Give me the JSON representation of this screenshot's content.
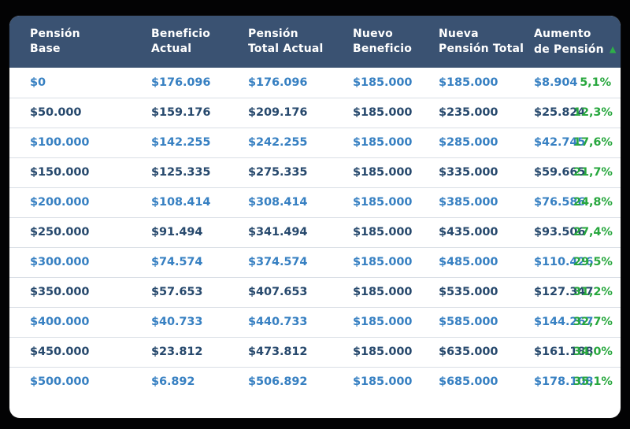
{
  "colors": {
    "page_background": "#030304",
    "card_background": "#ffffff",
    "header_background": "#3a5272",
    "header_text": "#ffffff",
    "row_blue_text": "#3780c2",
    "row_navy_text": "#27496d",
    "percent_green": "#28a73e",
    "sort_arrow_green": "#2eae49",
    "row_divider": "#d9dee5"
  },
  "table": {
    "cell_names": [
      "cell-pension-base",
      "cell-beneficio-actual",
      "cell-pension-total-actual",
      "cell-nuevo-beneficio",
      "cell-nueva-pension-total",
      "cell-aumento-pension",
      "cell-aumento-porcentaje"
    ],
    "header": [
      {
        "line1": "Pensión",
        "line2": "Base"
      },
      {
        "line1": "Beneficio",
        "line2": "Actual"
      },
      {
        "line1": "Pensión",
        "line2": "Total Actual"
      },
      {
        "line1": "Nuevo",
        "line2": "Beneficio"
      },
      {
        "line1": "Nueva",
        "line2": "Pensión Total"
      },
      {
        "line1": "Aumento",
        "line2": "de Pensión",
        "sort_icon": "▲"
      }
    ],
    "rows": [
      {
        "cells": [
          "$0",
          "$176.096",
          "$176.096",
          "$185.000",
          "$185.000",
          "$8.904",
          "5,1%"
        ]
      },
      {
        "cells": [
          "$50.000",
          "$159.176",
          "$209.176",
          "$185.000",
          "$235.000",
          "$25.824",
          "12,3%"
        ]
      },
      {
        "cells": [
          "$100.000",
          "$142.255",
          "$242.255",
          "$185.000",
          "$285.000",
          "$42.745",
          "17,6%"
        ]
      },
      {
        "cells": [
          "$150.000",
          "$125.335",
          "$275.335",
          "$185.000",
          "$335.000",
          "$59.665",
          "21,7%"
        ]
      },
      {
        "cells": [
          "$200.000",
          "$108.414",
          "$308.414",
          "$185.000",
          "$385.000",
          "$76.586",
          "24,8%"
        ]
      },
      {
        "cells": [
          "$250.000",
          "$91.494",
          "$341.494",
          "$185.000",
          "$435.000",
          "$93.506",
          "27,4%"
        ]
      },
      {
        "cells": [
          "$300.000",
          "$74.574",
          "$374.574",
          "$185.000",
          "$485.000",
          "$110.426",
          "29,5%"
        ]
      },
      {
        "cells": [
          "$350.000",
          "$57.653",
          "$407.653",
          "$185.000",
          "$535.000",
          "$127.347",
          "31,2%"
        ]
      },
      {
        "cells": [
          "$400.000",
          "$40.733",
          "$440.733",
          "$185.000",
          "$585.000",
          "$144.267",
          "32,7%"
        ]
      },
      {
        "cells": [
          "$450.000",
          "$23.812",
          "$473.812",
          "$185.000",
          "$635.000",
          "$161.188",
          "34,0%"
        ]
      },
      {
        "cells": [
          "$500.000",
          "$6.892",
          "$506.892",
          "$185.000",
          "$685.000",
          "$178.108",
          "35,1%"
        ]
      }
    ]
  },
  "chart_data": {
    "type": "table",
    "title": "",
    "columns": [
      "Pensión Base",
      "Beneficio Actual",
      "Pensión Total Actual",
      "Nuevo Beneficio",
      "Nueva Pensión Total",
      "Aumento de Pensión",
      "Aumento de Pensión %"
    ],
    "rows": [
      [
        "$0",
        "$176.096",
        "$176.096",
        "$185.000",
        "$185.000",
        "$8.904",
        "5,1%"
      ],
      [
        "$50.000",
        "$159.176",
        "$209.176",
        "$185.000",
        "$235.000",
        "$25.824",
        "12,3%"
      ],
      [
        "$100.000",
        "$142.255",
        "$242.255",
        "$185.000",
        "$285.000",
        "$42.745",
        "17,6%"
      ],
      [
        "$150.000",
        "$125.335",
        "$275.335",
        "$185.000",
        "$335.000",
        "$59.665",
        "21,7%"
      ],
      [
        "$200.000",
        "$108.414",
        "$308.414",
        "$185.000",
        "$385.000",
        "$76.586",
        "24,8%"
      ],
      [
        "$250.000",
        "$91.494",
        "$341.494",
        "$185.000",
        "$435.000",
        "$93.506",
        "27,4%"
      ],
      [
        "$300.000",
        "$74.574",
        "$374.574",
        "$185.000",
        "$485.000",
        "$110.426",
        "29,5%"
      ],
      [
        "$350.000",
        "$57.653",
        "$407.653",
        "$185.000",
        "$535.000",
        "$127.347",
        "31,2%"
      ],
      [
        "$400.000",
        "$40.733",
        "$440.733",
        "$185.000",
        "$585.000",
        "$144.267",
        "32,7%"
      ],
      [
        "$450.000",
        "$23.812",
        "$473.812",
        "$185.000",
        "$635.000",
        "$161.188",
        "34,0%"
      ],
      [
        "$500.000",
        "$6.892",
        "$506.892",
        "$185.000",
        "$685.000",
        "$178.108",
        "35,1%"
      ]
    ],
    "sort_indicator": {
      "column": "Aumento de Pensión",
      "direction": "ascending"
    }
  }
}
